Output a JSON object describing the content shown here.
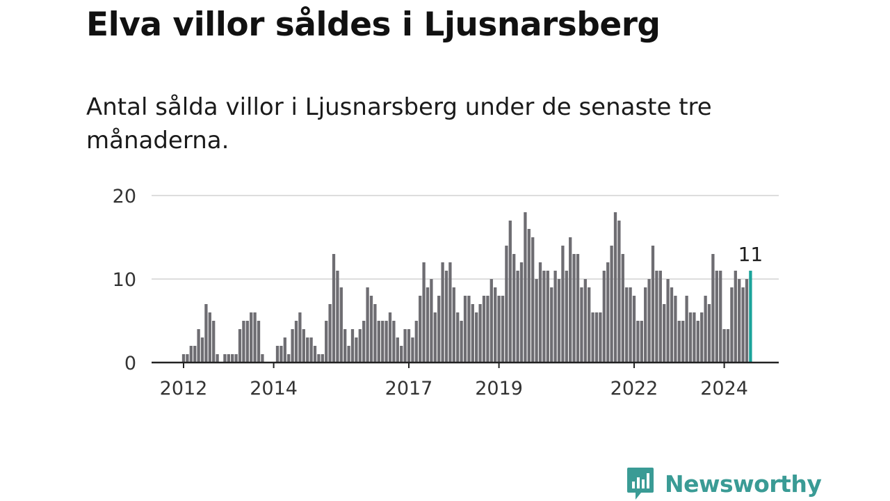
{
  "title": "Elva villor såldes i Ljusnarsberg",
  "subtitle": "Antal sålda villor i Ljusnarsberg under de senaste tre månaderna.",
  "brand": {
    "name": "Newsworthy",
    "icon": "newsworthy-logo-icon",
    "color": "#3a9b95"
  },
  "colors": {
    "bar": "#6e6d72",
    "highlight": "#1aa39a",
    "grid": "#dddddd",
    "axis": "#222222"
  },
  "chart_data": {
    "type": "bar",
    "x_start": "2012-01",
    "x_end": "2024-08",
    "frequency": "monthly",
    "xtick_labels": [
      "2012",
      "2014",
      "2017",
      "2019",
      "2022",
      "2024"
    ],
    "ytick_labels": [
      "0",
      "10",
      "20"
    ],
    "ylim": [
      0,
      20
    ],
    "grid": true,
    "values": [
      1,
      1,
      2,
      2,
      4,
      3,
      7,
      6,
      5,
      1,
      0,
      1,
      1,
      1,
      1,
      4,
      5,
      5,
      6,
      6,
      5,
      1,
      0,
      0,
      0,
      2,
      2,
      3,
      1,
      4,
      5,
      6,
      4,
      3,
      3,
      2,
      1,
      1,
      5,
      7,
      13,
      11,
      9,
      4,
      2,
      4,
      3,
      4,
      5,
      9,
      8,
      7,
      5,
      5,
      5,
      6,
      5,
      3,
      2,
      4,
      4,
      3,
      5,
      8,
      12,
      9,
      10,
      6,
      8,
      12,
      11,
      12,
      9,
      6,
      5,
      8,
      8,
      7,
      6,
      7,
      8,
      8,
      10,
      9,
      8,
      8,
      14,
      17,
      13,
      11,
      12,
      18,
      16,
      15,
      10,
      12,
      11,
      11,
      9,
      11,
      10,
      14,
      11,
      15,
      13,
      13,
      9,
      10,
      9,
      6,
      6,
      6,
      11,
      12,
      14,
      18,
      17,
      13,
      9,
      9,
      8,
      5,
      5,
      9,
      10,
      14,
      11,
      11,
      7,
      10,
      9,
      8,
      5,
      5,
      8,
      6,
      6,
      5,
      6,
      8,
      7,
      13,
      11,
      11,
      4,
      4,
      9,
      11,
      10,
      9,
      10,
      11
    ],
    "highlight": {
      "index": 151,
      "label": "11"
    }
  }
}
